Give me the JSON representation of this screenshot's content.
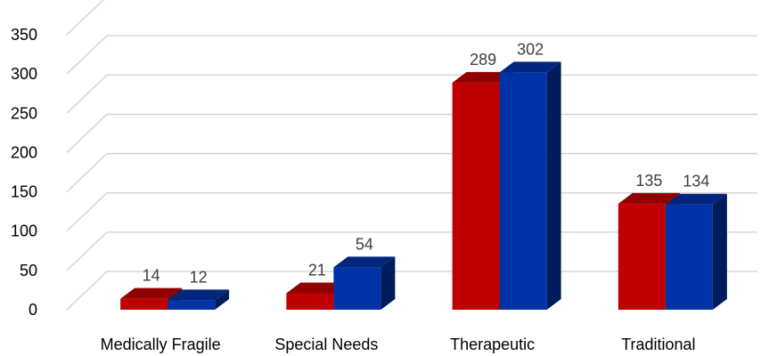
{
  "chart_data": {
    "type": "bar",
    "categories": [
      "Medically Fragile",
      "Special Needs",
      "Therapeutic",
      "Traditional"
    ],
    "series": [
      {
        "values": [
          14,
          21,
          289,
          135
        ],
        "color": "#c00000"
      },
      {
        "values": [
          12,
          54,
          302,
          134
        ],
        "color": "#0033a8"
      }
    ],
    "y_ticks": [
      0,
      50,
      100,
      150,
      200,
      250,
      300,
      350
    ],
    "ylim": [
      0,
      350
    ],
    "grid": true,
    "legend": "none",
    "title": "",
    "xlabel": "",
    "ylabel": ""
  }
}
